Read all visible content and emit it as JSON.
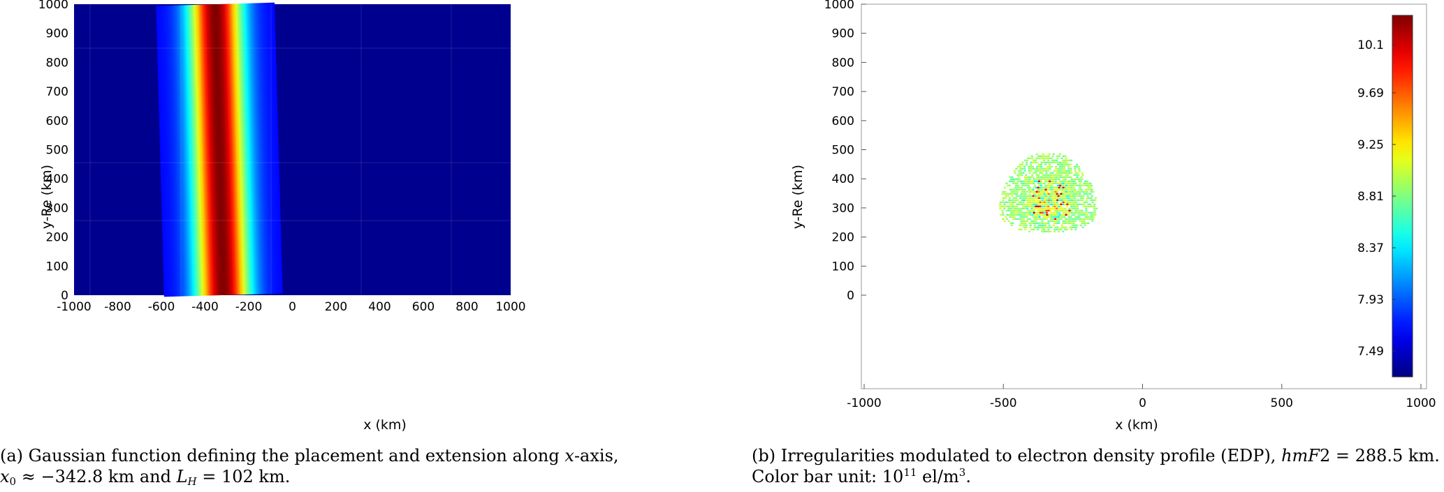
{
  "chart_data": [
    {
      "type": "heatmap",
      "panel": "a",
      "xlabel": "x (km)",
      "ylabel": "y-Re (km)",
      "xlim": [
        -1000,
        1000
      ],
      "ylim": [
        0,
        1000
      ],
      "xticks": [
        -1000,
        -800,
        -600,
        -400,
        -200,
        0,
        200,
        400,
        600,
        800,
        1000
      ],
      "yticks": [
        0,
        100,
        200,
        300,
        400,
        500,
        600,
        700,
        800,
        900,
        1000
      ],
      "gaussian": {
        "x0_bottom": -316,
        "x0_top": -353,
        "fwhm": 200
      },
      "colormap": "jet",
      "background": "#00008f",
      "grid": true
    },
    {
      "type": "heatmap",
      "panel": "b",
      "xlabel": "x (km)",
      "ylabel": "y-Re (km)",
      "xlim": [
        -1000,
        1000
      ],
      "ylim": [
        0,
        1000
      ],
      "xticks": [
        -1000,
        -500,
        0,
        500,
        1000
      ],
      "yticks": [
        0,
        100,
        200,
        300,
        400,
        500,
        600,
        700,
        800,
        900,
        1000
      ],
      "blob": {
        "x_center": -340,
        "y_center": 310,
        "x_min": -520,
        "x_max": -170,
        "y_min": 215,
        "y_max": 495
      },
      "colorbar": {
        "range": [
          7.27,
          10.35
        ],
        "tick_labels": [
          "10.1",
          "9.69",
          "9.25",
          "8.81",
          "8.37",
          "7.93",
          "7.49"
        ],
        "tick_values": [
          10.1,
          9.69,
          9.25,
          8.81,
          8.37,
          7.93,
          7.49
        ],
        "colormap": "jet"
      },
      "grid": false
    }
  ],
  "captions": {
    "a_line1": "(a) Gaussian function defining the placement and extension along ",
    "a_line1_var": "x",
    "a_line1_end": "-axis,",
    "a_line2_x0": "x",
    "a_line2_x0_sub": "0",
    "a_line2_mid": " ≈ −342.8 km and ",
    "a_line2_L": "L",
    "a_line2_L_sub": "H",
    "a_line2_end": " = 102 km.",
    "b_line1": "(b) Irregularities modulated to electron density profile (EDP), ",
    "b_line1_var": "hmF",
    "b_line1_end": "2 = 288.5 km.",
    "b_line2": "Color bar unit: 10",
    "b_line2_sup": "11",
    "b_line2_mid": " el/m",
    "b_line2_sup2": "3",
    "b_line2_end": "."
  }
}
